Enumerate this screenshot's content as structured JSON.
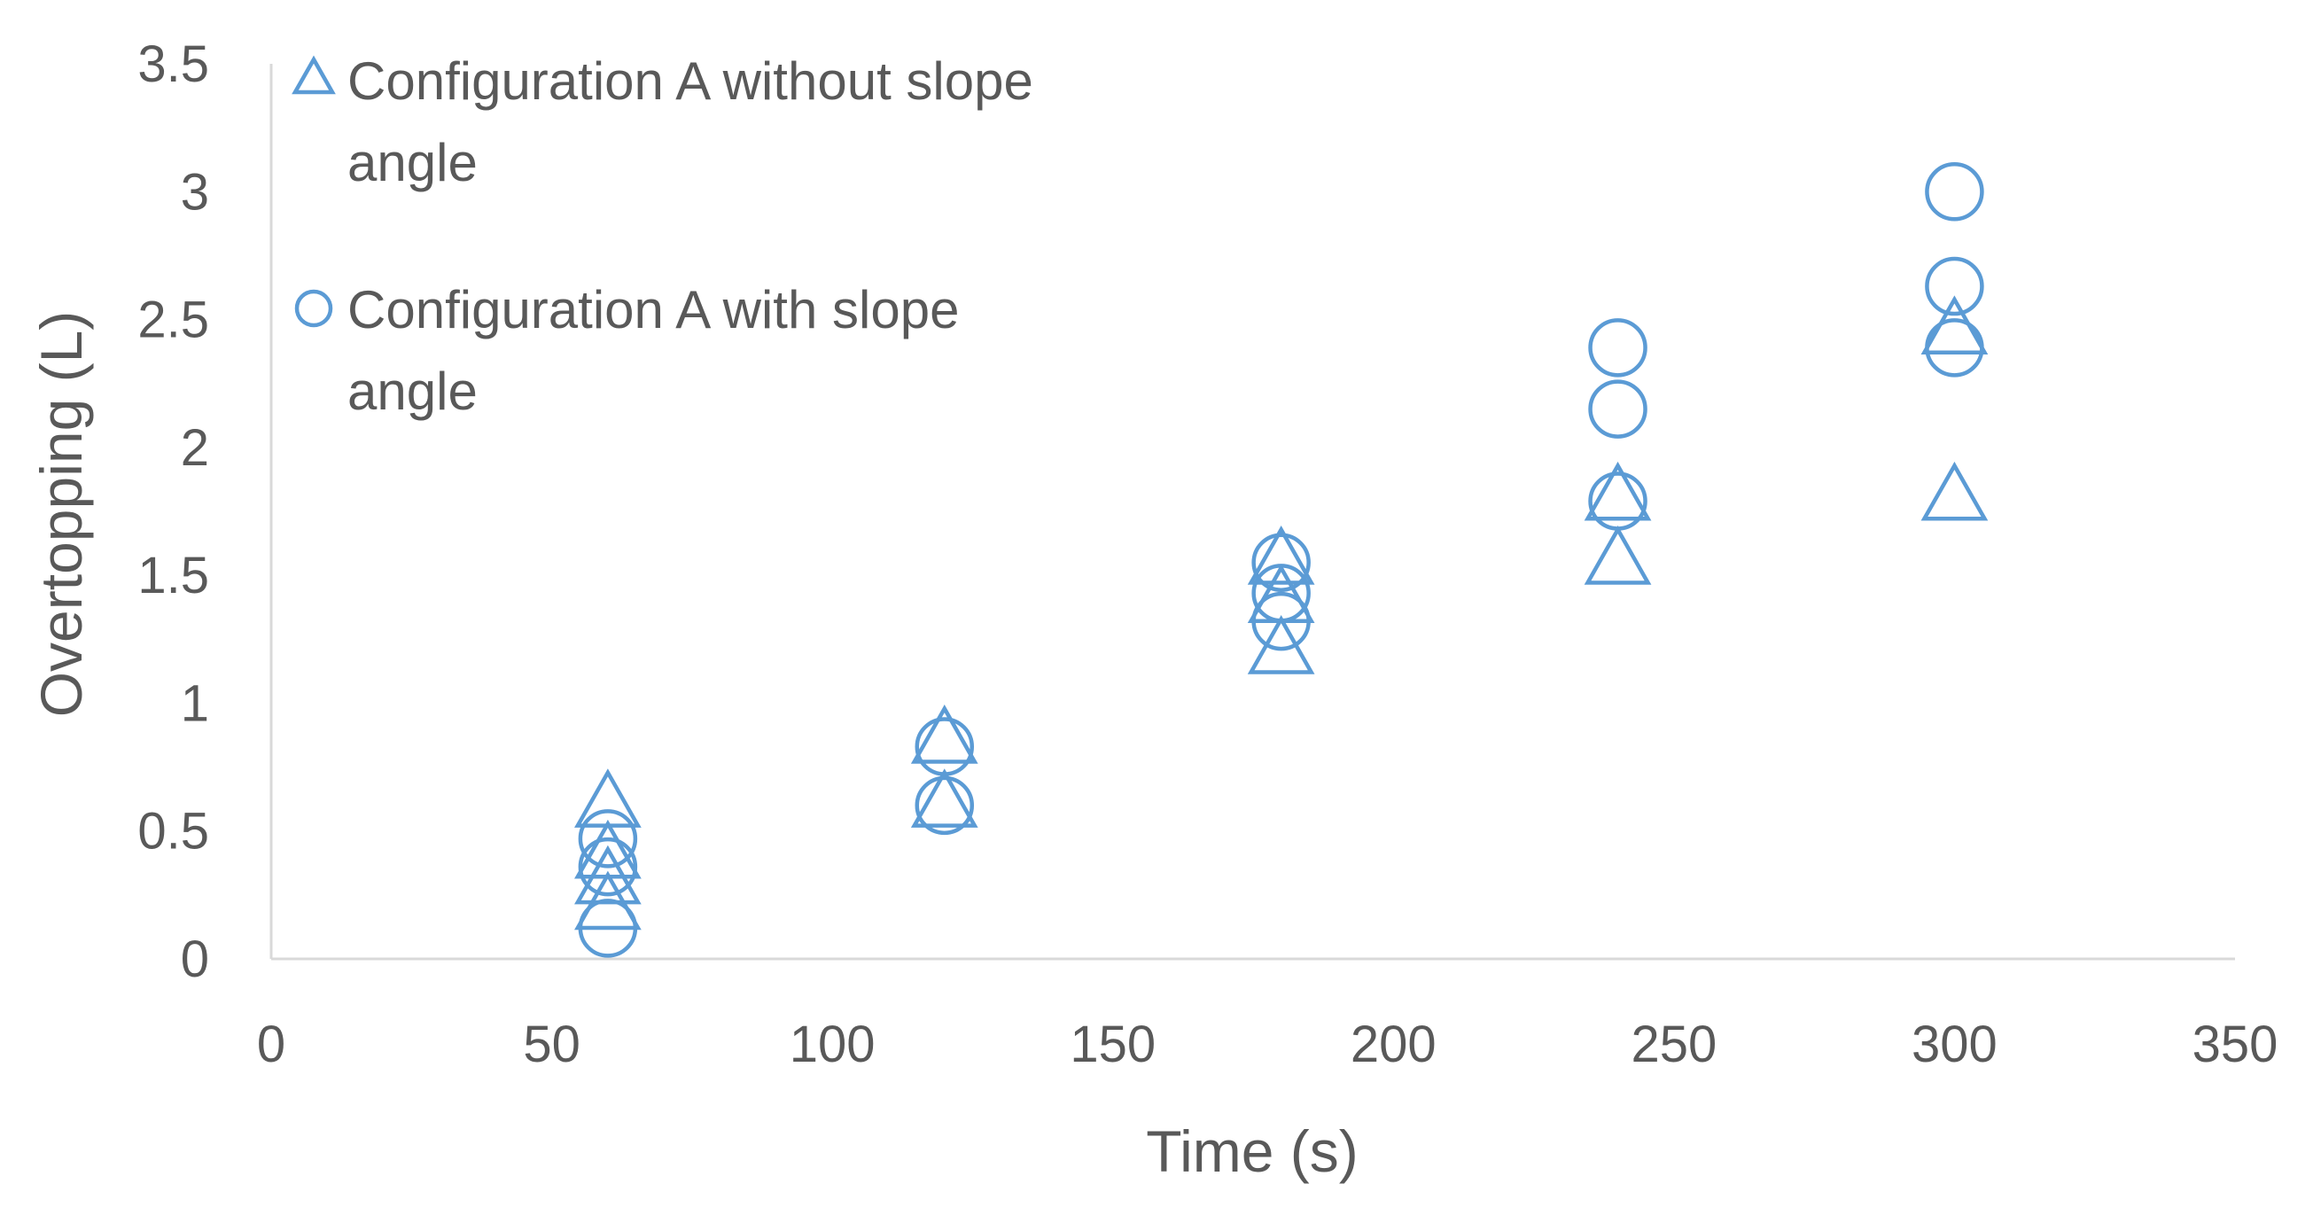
{
  "chart_data": {
    "type": "scatter",
    "title": "",
    "xlabel": "Time (s)",
    "ylabel": "Overtopping (L)",
    "xlim": [
      0,
      350
    ],
    "ylim": [
      0,
      3.5
    ],
    "xticks": [
      "0",
      "50",
      "100",
      "150",
      "200",
      "250",
      "300",
      "350"
    ],
    "yticks": [
      "0",
      "0.5",
      "1",
      "1.5",
      "2",
      "2.5",
      "3",
      "3.5"
    ],
    "grid": false,
    "legend_position": "top-left",
    "marker_color": "#5B9BD5",
    "series": [
      {
        "name": "Configuration A without slope angle",
        "name_lines": [
          "Configuration A without slope",
          "angle"
        ],
        "marker": "triangle",
        "points": [
          [
            60,
            0.6
          ],
          [
            60,
            0.4
          ],
          [
            60,
            0.3
          ],
          [
            60,
            0.2
          ],
          [
            120,
            0.85
          ],
          [
            120,
            0.6
          ],
          [
            180,
            1.55
          ],
          [
            180,
            1.4
          ],
          [
            180,
            1.2
          ],
          [
            240,
            1.8
          ],
          [
            240,
            1.55
          ],
          [
            300,
            2.45
          ],
          [
            300,
            1.8
          ]
        ]
      },
      {
        "name": "Configuration A with slope angle",
        "name_lines": [
          "Configuration A with slope",
          "angle"
        ],
        "marker": "circle",
        "points": [
          [
            60,
            0.47
          ],
          [
            60,
            0.36
          ],
          [
            60,
            0.12
          ],
          [
            120,
            0.83
          ],
          [
            120,
            0.6
          ],
          [
            180,
            1.55
          ],
          [
            180,
            1.43
          ],
          [
            180,
            1.32
          ],
          [
            240,
            2.39
          ],
          [
            240,
            2.15
          ],
          [
            240,
            1.79
          ],
          [
            300,
            3.0
          ],
          [
            300,
            2.63
          ],
          [
            300,
            2.39
          ]
        ]
      }
    ]
  }
}
